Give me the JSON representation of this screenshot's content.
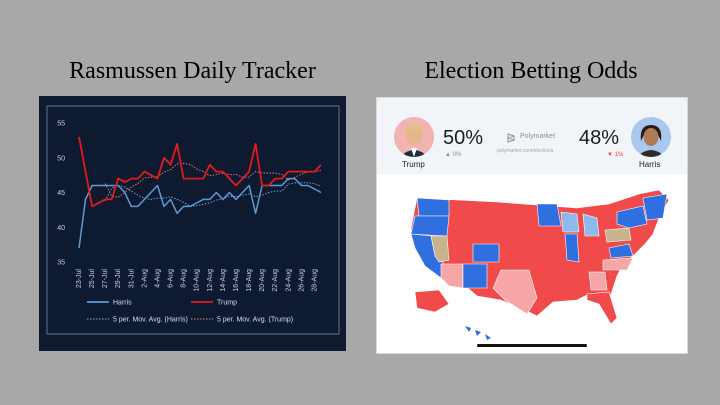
{
  "headings": {
    "left": "Rasmussen Daily Tracker",
    "right": "Election Betting Odds"
  },
  "chart_data": {
    "type": "line",
    "title": "",
    "xlabel": "",
    "ylabel": "",
    "ylim": [
      35,
      55
    ],
    "yticks": [
      "35",
      "40",
      "45",
      "50",
      "55"
    ],
    "categories": [
      "23-Jul",
      "24-Jul",
      "25-Jul",
      "26-Jul",
      "27-Jul",
      "28-Jul",
      "29-Jul",
      "30-Jul",
      "31-Jul",
      "1-Aug",
      "2-Aug",
      "3-Aug",
      "4-Aug",
      "5-Aug",
      "6-Aug",
      "7-Aug",
      "8-Aug",
      "9-Aug",
      "10-Aug",
      "11-Aug",
      "12-Aug",
      "13-Aug",
      "14-Aug",
      "15-Aug",
      "16-Aug",
      "17-Aug",
      "18-Aug",
      "19-Aug",
      "20-Aug",
      "21-Aug",
      "22-Aug",
      "23-Aug",
      "24-Aug",
      "25-Aug",
      "26-Aug",
      "27-Aug",
      "28-Aug",
      "29-Aug"
    ],
    "tick_labels": [
      "23-Jul",
      "25-Jul",
      "27-Jul",
      "29-Jul",
      "31-Jul",
      "2-Aug",
      "4-Aug",
      "6-Aug",
      "8-Aug",
      "10-Aug",
      "12-Aug",
      "14-Aug",
      "16-Aug",
      "18-Aug",
      "20-Aug",
      "22-Aug",
      "24-Aug",
      "26-Aug",
      "28-Aug"
    ],
    "series": [
      {
        "name": "Harris",
        "color": "#5b9bd5",
        "style": "solid",
        "values": [
          37,
          44,
          46,
          46,
          46,
          46,
          46,
          45,
          43,
          43,
          44,
          45,
          46,
          43,
          44,
          42,
          43,
          43,
          43.5,
          44,
          44,
          45,
          44,
          45,
          44,
          45,
          46,
          42,
          46,
          46,
          46,
          46,
          47,
          47,
          46,
          46,
          45.5,
          45
        ]
      },
      {
        "name": "Trump",
        "color": "#e31a1c",
        "style": "solid",
        "values": [
          53,
          48,
          43,
          43.5,
          44,
          44,
          47,
          46.5,
          47,
          47,
          48,
          47.5,
          47,
          50,
          49,
          52,
          47,
          47,
          47,
          47,
          49,
          48,
          48,
          47,
          46,
          47,
          48,
          52,
          46,
          46,
          47,
          47,
          48,
          48,
          48,
          48,
          48,
          49
        ]
      },
      {
        "name": "5 per. Mov. Avg. (Harris)",
        "color": "#7fb2e5",
        "style": "dotted",
        "values": [
          null,
          null,
          null,
          null,
          43.8,
          45.6,
          46,
          45.8,
          45.2,
          44.6,
          44.2,
          44,
          44.2,
          44.2,
          44.4,
          44,
          43.6,
          43,
          43.1,
          43.3,
          43.5,
          43.9,
          44.1,
          44.5,
          44.4,
          44.6,
          44.8,
          44.4,
          44.6,
          45,
          45.2,
          45.2,
          46.2,
          46.4,
          46.4,
          46.4,
          46.3,
          45.9
        ]
      },
      {
        "name": "5 per. Mov. Avg. (Trump)",
        "color": "#f08080",
        "style": "dotted",
        "values": [
          null,
          null,
          null,
          null,
          46.3,
          44.5,
          44.3,
          45,
          45.8,
          46.3,
          47.1,
          47.2,
          47.3,
          47.9,
          48.3,
          49.1,
          49.2,
          49,
          48.4,
          48,
          47.4,
          47.6,
          47.8,
          47.6,
          47.6,
          47.2,
          47.2,
          48,
          47.8,
          47.8,
          47.8,
          47.6,
          46.8,
          47.2,
          47.6,
          48,
          48,
          48.2
        ]
      }
    ],
    "legend_placement": "bottom",
    "grid": false
  },
  "odds": {
    "trump": {
      "name": "Trump",
      "pct": "50%",
      "change": "▲ 0%",
      "change_color": "#8a8f99"
    },
    "harris": {
      "name": "Harris",
      "pct": "48%",
      "change": "▼ 1%",
      "change_color": "#e0443a"
    },
    "source_label": "Polymarket",
    "source_url": "polymarket.com/elections"
  },
  "map": {
    "colors": {
      "dem_solid": "#2f6fe0",
      "dem_lean": "#8fb9ec",
      "rep_solid": "#f04a4a",
      "rep_lean": "#f6a6a6",
      "tossup": "#c8b38d"
    }
  }
}
